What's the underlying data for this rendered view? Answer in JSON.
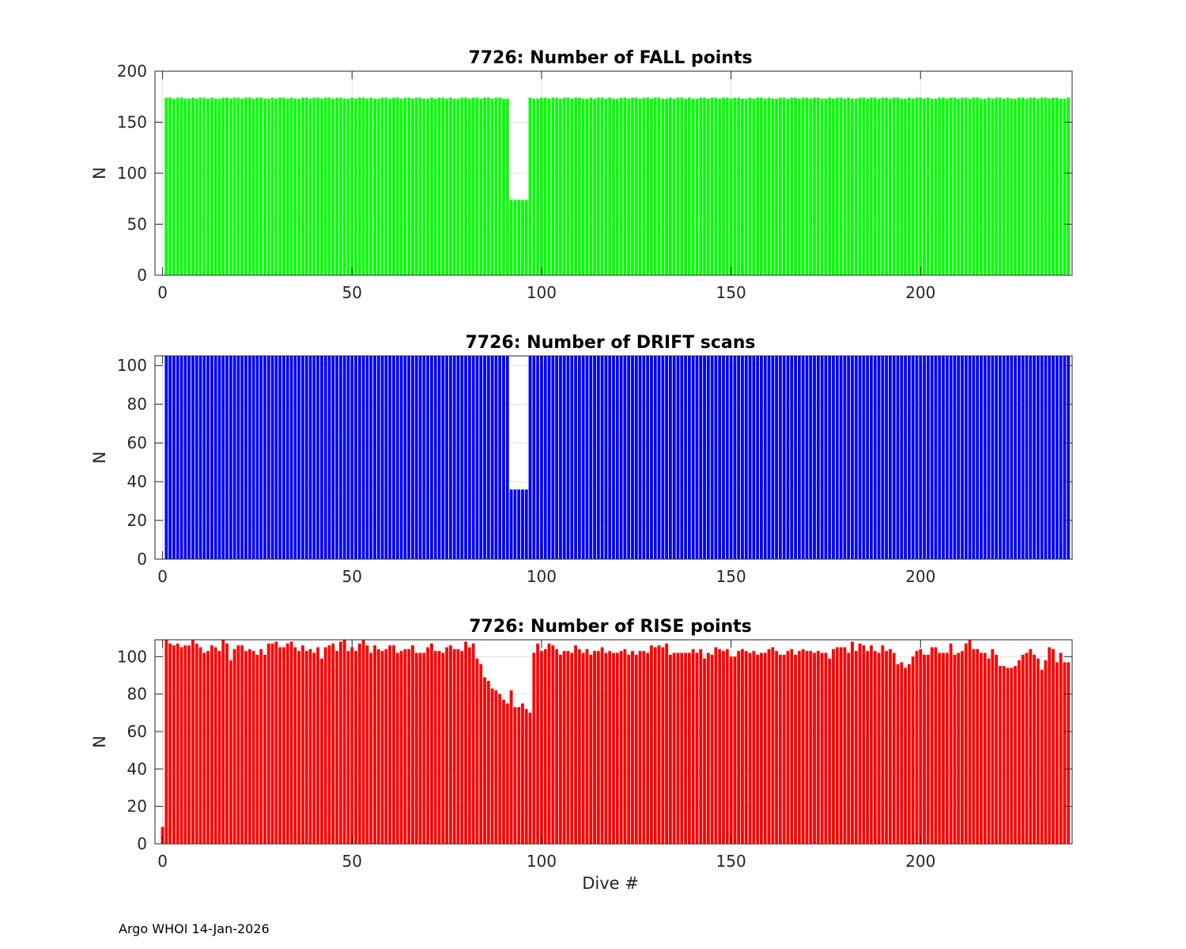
{
  "footer": "Argo WHOI 14-Jan-2026",
  "chart_data": [
    {
      "type": "bar",
      "title": "7726: Number of FALL points",
      "xlabel": "",
      "ylabel": "N",
      "xlim": [
        -2,
        240
      ],
      "ylim": [
        0,
        200
      ],
      "xticks": [
        0,
        50,
        100,
        150,
        200
      ],
      "yticks": [
        0,
        50,
        100,
        150,
        200
      ],
      "color": "#00ff00",
      "x_start": 1,
      "pattern": "constant 174 for dives 1-239 (slight 173/174 jitter) except dives 92-96 = 74",
      "values": []
    },
    {
      "type": "bar",
      "title": "7726: Number of DRIFT scans",
      "xlabel": "",
      "ylabel": "N",
      "xlim": [
        -2,
        240
      ],
      "ylim": [
        0,
        105
      ],
      "xticks": [
        0,
        50,
        100,
        150,
        200
      ],
      "yticks": [
        0,
        20,
        40,
        60,
        80,
        100
      ],
      "color": "#0000ff",
      "x_start": 1,
      "pattern": "bars exceed the 105 axis limit (clipped) for dives 1-239 except dives 92-96 = 36",
      "values": []
    },
    {
      "type": "bar",
      "title": "7726: Number of RISE points",
      "xlabel": "Dive #",
      "ylabel": "N",
      "xlim": [
        -2,
        240
      ],
      "ylim": [
        0,
        109
      ],
      "xticks": [
        0,
        50,
        100,
        150,
        200
      ],
      "yticks": [
        0,
        20,
        40,
        60,
        80,
        100
      ],
      "color": "#ff0000",
      "x_start": 0,
      "values": []
    }
  ]
}
